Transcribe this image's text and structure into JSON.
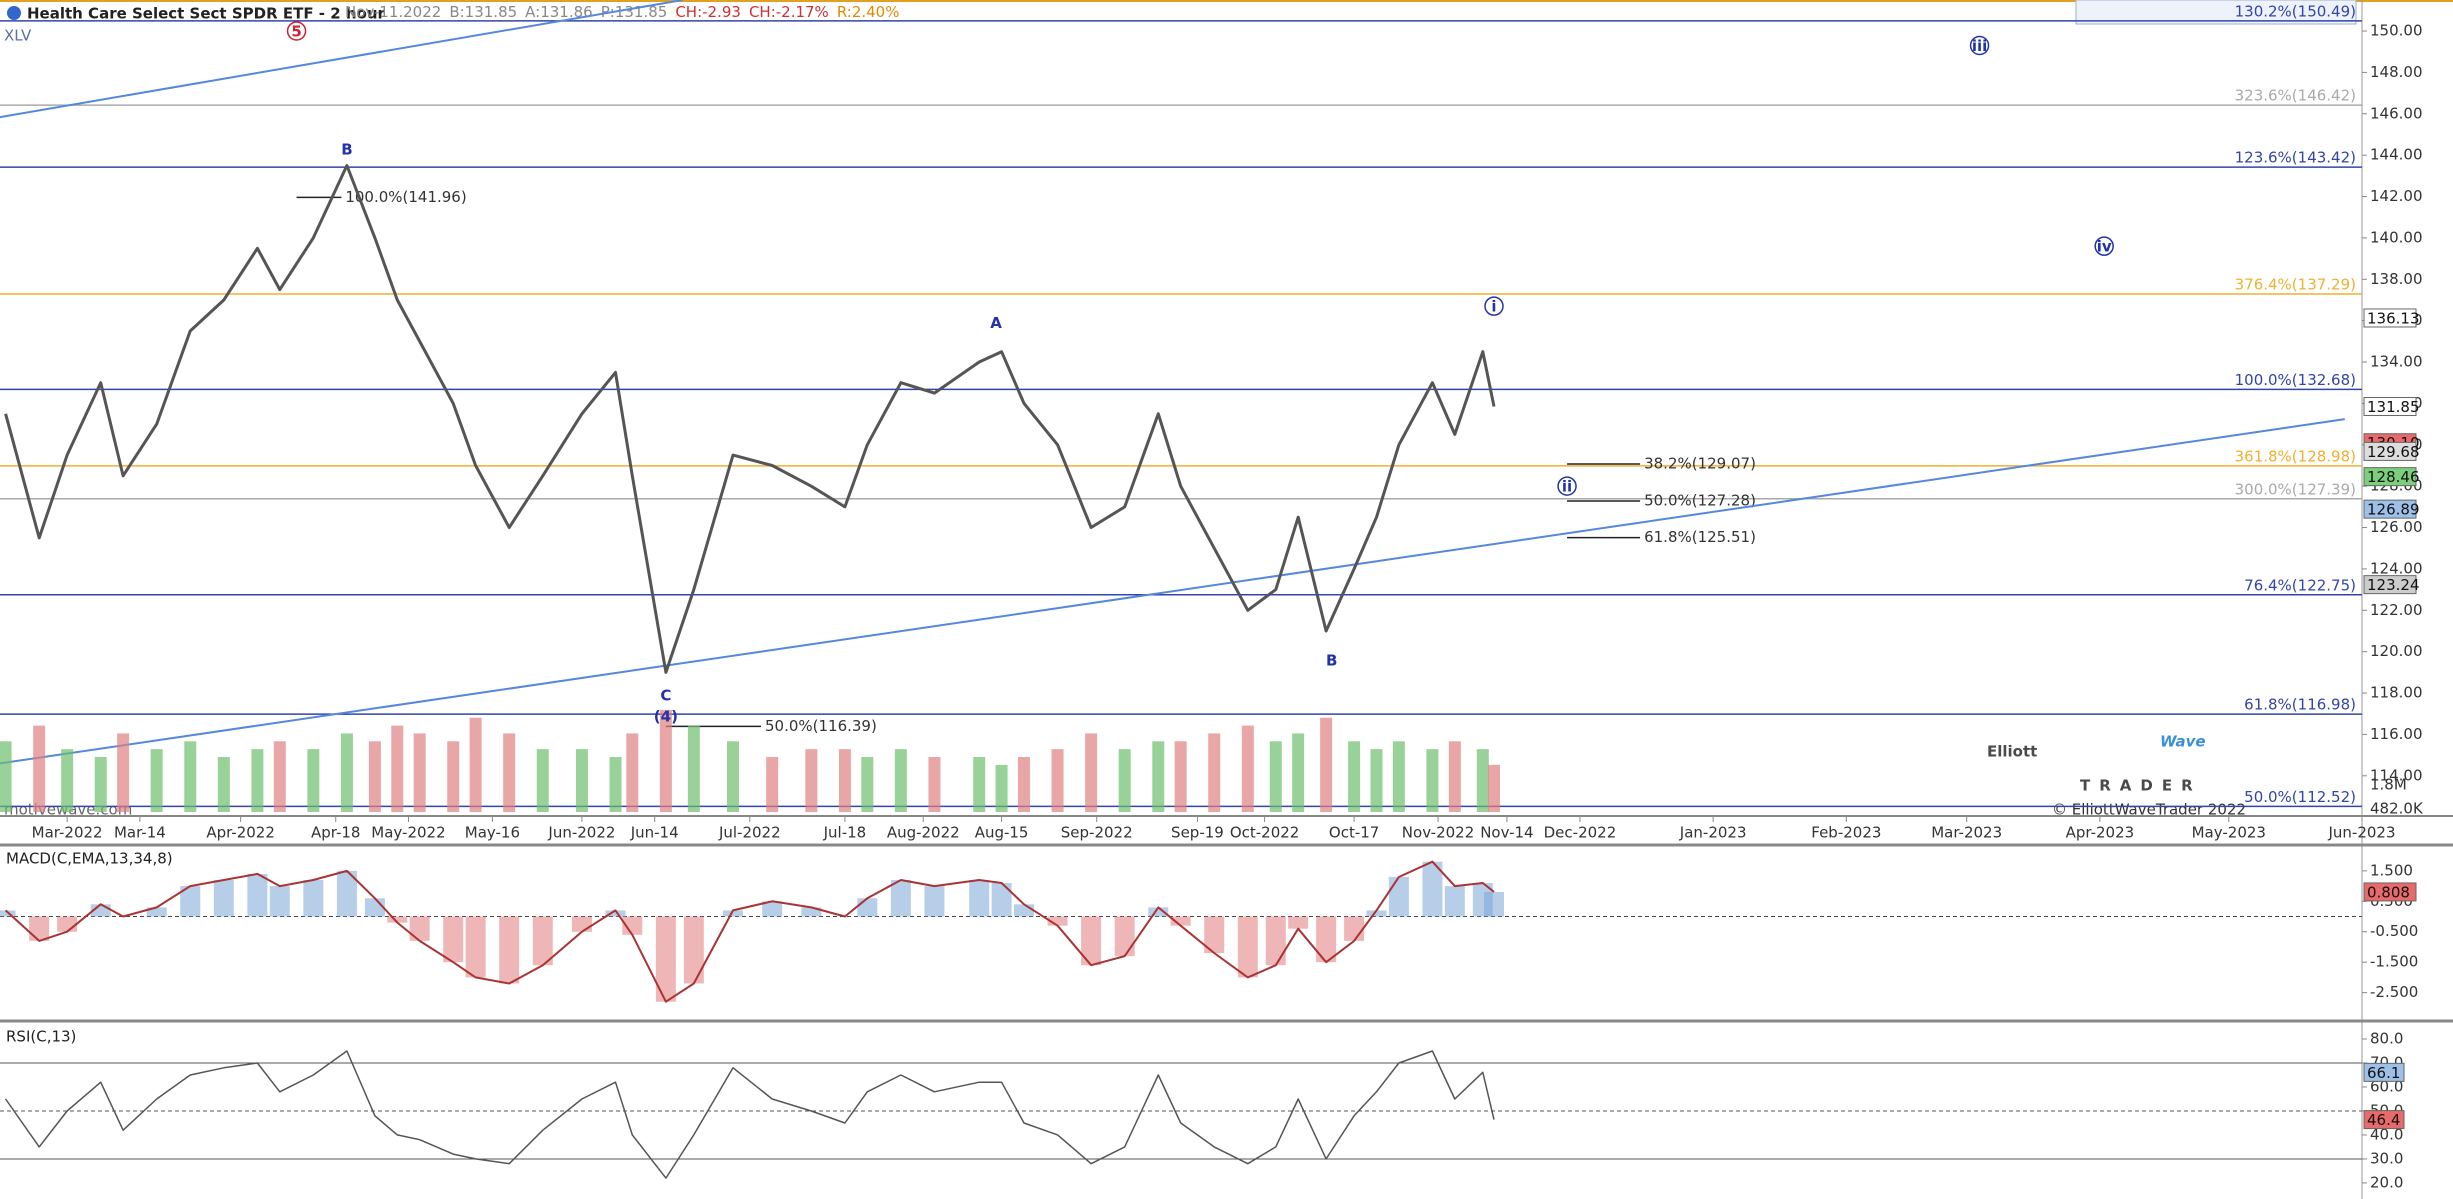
{
  "chart_data": {
    "type": "line",
    "title": "Health Care Select Sect SPDR ETF - 2 hour",
    "quote": [
      {
        "text": "Nov-11.2022",
        "color": "#888888"
      },
      {
        "text": "B:131.85",
        "color": "#888888"
      },
      {
        "text": "A:131.86",
        "color": "#888888"
      },
      {
        "text": "P:131.85",
        "color": "#888888"
      },
      {
        "text": "CH:-2.93",
        "color": "#d03030"
      },
      {
        "text": "CH:-2.17%",
        "color": "#d03030"
      },
      {
        "text": "R:2.40%",
        "color": "#e08a00"
      }
    ],
    "symbol": "XLV",
    "watermark": "motivewave.com",
    "logo": {
      "word1": "Elliott",
      "word2": "Wave",
      "word3": "TRADER",
      "copyright": "© ElliottWaveTrader 2022"
    },
    "x": [
      "2022-02-18",
      "2022-02-24",
      "2022-03-01",
      "2022-03-07",
      "2022-03-11",
      "2022-03-17",
      "2022-03-23",
      "2022-03-29",
      "2022-04-04",
      "2022-04-08",
      "2022-04-14",
      "2022-04-20",
      "2022-04-25",
      "2022-04-29",
      "2022-05-03",
      "2022-05-09",
      "2022-05-13",
      "2022-05-19",
      "2022-05-25",
      "2022-06-01",
      "2022-06-07",
      "2022-06-10",
      "2022-06-16",
      "2022-06-21",
      "2022-06-28",
      "2022-07-05",
      "2022-07-12",
      "2022-07-18",
      "2022-07-22",
      "2022-07-28",
      "2022-08-03",
      "2022-08-11",
      "2022-08-15",
      "2022-08-19",
      "2022-08-25",
      "2022-08-31",
      "2022-09-06",
      "2022-09-12",
      "2022-09-16",
      "2022-09-22",
      "2022-09-28",
      "2022-10-03",
      "2022-10-07",
      "2022-10-12",
      "2022-10-17",
      "2022-10-21",
      "2022-10-25",
      "2022-10-31",
      "2022-11-04",
      "2022-11-09",
      "2022-11-11"
    ],
    "series": [
      {
        "name": "XLV",
        "color": "#555555",
        "values": [
          131.5,
          125.5,
          129.5,
          133,
          128.5,
          131,
          135.5,
          137,
          139.5,
          137.5,
          140,
          143.5,
          140,
          137,
          135,
          132,
          129,
          126,
          128.5,
          131.5,
          133.5,
          128.5,
          119,
          123,
          129.5,
          129,
          128,
          127,
          130,
          133,
          132.5,
          134,
          134.5,
          132,
          130,
          126,
          127,
          131.5,
          128,
          125,
          122,
          123,
          126.5,
          121,
          124,
          126.5,
          130,
          133,
          130.5,
          134.5,
          131.85
        ]
      }
    ],
    "volume": {
      "up_color": "#6cbf6c",
      "down_color": "#e08080",
      "values": [
        9,
        11,
        8,
        7,
        10,
        8,
        9,
        7,
        8,
        9,
        8,
        10,
        9,
        11,
        10,
        9,
        12,
        10,
        8,
        8,
        7,
        10,
        13,
        11,
        9,
        7,
        8,
        8,
        7,
        8,
        7,
        7,
        6,
        7,
        8,
        10,
        8,
        9,
        9,
        10,
        11,
        9,
        10,
        12,
        9,
        8,
        9,
        8,
        9,
        8,
        6
      ],
      "ylim": [
        0,
        14
      ],
      "labels": [
        "1.8M",
        "482.0K"
      ]
    },
    "xlim": [
      "2022-02-17",
      "2023-06-01"
    ],
    "xticks": [
      {
        "value": "2022-03-01",
        "label": "Mar-2022"
      },
      {
        "value": "2022-03-14",
        "label": "Mar-14"
      },
      {
        "value": "2022-04-01",
        "label": "Apr-2022"
      },
      {
        "value": "2022-04-18",
        "label": "Apr-18"
      },
      {
        "value": "2022-05-01",
        "label": "May-2022"
      },
      {
        "value": "2022-05-16",
        "label": "May-16"
      },
      {
        "value": "2022-06-01",
        "label": "Jun-2022"
      },
      {
        "value": "2022-06-14",
        "label": "Jun-14"
      },
      {
        "value": "2022-07-01",
        "label": "Jul-2022"
      },
      {
        "value": "2022-07-18",
        "label": "Jul-18"
      },
      {
        "value": "2022-08-01",
        "label": "Aug-2022"
      },
      {
        "value": "2022-08-15",
        "label": "Aug-15"
      },
      {
        "value": "2022-09-01",
        "label": "Sep-2022"
      },
      {
        "value": "2022-09-19",
        "label": "Sep-19"
      },
      {
        "value": "2022-10-01",
        "label": "Oct-2022"
      },
      {
        "value": "2022-10-17",
        "label": "Oct-17"
      },
      {
        "value": "2022-11-01",
        "label": "Nov-2022"
      },
      {
        "value": "2022-11-14",
        "label": "Nov-14"
      },
      {
        "value": "2022-12-01",
        "label": "Dec-2022"
      },
      {
        "value": "2023-01-01",
        "label": "Jan-2023"
      },
      {
        "value": "2023-02-01",
        "label": "Feb-2023"
      },
      {
        "value": "2023-03-01",
        "label": "Mar-2023"
      },
      {
        "value": "2023-04-01",
        "label": "Apr-2023"
      },
      {
        "value": "2023-05-01",
        "label": "May-2023"
      },
      {
        "value": "2023-06-01",
        "label": "Jun-2023"
      }
    ],
    "ylim": [
      112.25,
      151.5
    ],
    "yticks": [
      {
        "value": 114,
        "label": "114.00"
      },
      {
        "value": 116,
        "label": "116.00"
      },
      {
        "value": 118,
        "label": "118.00"
      },
      {
        "value": 120,
        "label": "120.00"
      },
      {
        "value": 122,
        "label": "122.00"
      },
      {
        "value": 124,
        "label": "124.00"
      },
      {
        "value": 126,
        "label": "126.00"
      },
      {
        "value": 128,
        "label": "128.00"
      },
      {
        "value": 130,
        "label": "130.00"
      },
      {
        "value": 132,
        "label": "132.00"
      },
      {
        "value": 134,
        "label": "134.00"
      },
      {
        "value": 136,
        "label": "136.00"
      },
      {
        "value": 138,
        "label": "138.00"
      },
      {
        "value": 140,
        "label": "140.00"
      },
      {
        "value": 142,
        "label": "142.00"
      },
      {
        "value": 144,
        "label": "144.00"
      },
      {
        "value": 146,
        "label": "146.00"
      },
      {
        "value": 148,
        "label": "148.00"
      },
      {
        "value": 150,
        "label": "150.00"
      }
    ],
    "price_markers": [
      {
        "value": 136.13,
        "label": "136.13",
        "color": "#ffffff"
      },
      {
        "value": 131.85,
        "label": "131.85",
        "color": "#ffffff"
      },
      {
        "value": 130.1,
        "label": "130.10",
        "color": "#e86a6a"
      },
      {
        "value": 129.68,
        "label": "129.68",
        "color": "#dddddd"
      },
      {
        "value": 128.46,
        "label": "128.46",
        "color": "#7ccf7c"
      },
      {
        "value": 126.89,
        "label": "126.89",
        "color": "#9cc0e8"
      },
      {
        "value": 123.24,
        "label": "123.24",
        "color": "#cccccc"
      }
    ],
    "fib_levels": [
      {
        "value": 150.49,
        "label": "130.2%(150.49)",
        "color": "#3344aa"
      },
      {
        "value": 146.42,
        "label": "323.6%(146.42)",
        "color": "#aaaaaa"
      },
      {
        "value": 143.42,
        "label": "123.6%(143.42)",
        "color": "#3344aa"
      },
      {
        "value": 137.29,
        "label": "376.4%(137.29)",
        "color": "#f0b030"
      },
      {
        "value": 132.68,
        "label": "100.0%(132.68)",
        "color": "#3344aa"
      },
      {
        "value": 128.98,
        "label": "361.8%(128.98)",
        "color": "#f0b030"
      },
      {
        "value": 127.39,
        "label": "300.0%(127.39)",
        "color": "#aaaaaa"
      },
      {
        "value": 122.75,
        "label": "76.4%(122.75)",
        "color": "#3344aa"
      },
      {
        "value": 116.98,
        "label": "61.8%(116.98)",
        "color": "#3344aa"
      },
      {
        "value": 112.52,
        "label": "50.0%(112.52)",
        "color": "#3344aa"
      }
    ],
    "fib_segments": [
      {
        "value": 141.96,
        "label": "100.0%(141.96)",
        "from": "2022-04-11",
        "to": "2022-04-19"
      },
      {
        "value": 116.39,
        "label": "50.0%(116.39)",
        "from": "2022-06-16",
        "to": "2022-07-03"
      },
      {
        "value": 129.07,
        "label": "38.2%(129.07)",
        "from": "2022-11-28",
        "to": "2022-12-15"
      },
      {
        "value": 127.28,
        "label": "50.0%(127.28)",
        "from": "2022-11-28",
        "to": "2022-12-15"
      },
      {
        "value": 125.51,
        "label": "61.8%(125.51)",
        "from": "2022-11-28",
        "to": "2022-12-15"
      }
    ],
    "wave_labels": [
      {
        "label": "5",
        "date": "2022-04-11",
        "value": 150.0,
        "circled": true,
        "color": "#cc2233"
      },
      {
        "label": "B",
        "date": "2022-04-20",
        "value": 144.3,
        "circled": false,
        "color": "#2233aa"
      },
      {
        "label": "C",
        "date": "2022-06-16",
        "value": 117.9,
        "circled": false,
        "color": "#2233aa"
      },
      {
        "label": "(4)",
        "date": "2022-06-16",
        "value": 116.9,
        "circled": false,
        "color": "#2233aa"
      },
      {
        "label": "A",
        "date": "2022-08-14",
        "value": 135.9,
        "circled": false,
        "color": "#2233aa"
      },
      {
        "label": "B",
        "date": "2022-10-13",
        "value": 119.6,
        "circled": false,
        "color": "#2233aa"
      },
      {
        "label": "i",
        "date": "2022-11-11",
        "value": 136.7,
        "circled": true,
        "color": "#2233aa"
      },
      {
        "label": "ii",
        "date": "2022-11-28",
        "value": 128.0,
        "circled": true,
        "color": "#2233aa"
      },
      {
        "label": "iii",
        "date": "2023-03-04",
        "value": 149.3,
        "circled": true,
        "color": "#2233aa"
      },
      {
        "label": "iv",
        "date": "2023-04-02",
        "value": 139.6,
        "circled": true,
        "color": "#2233aa"
      }
    ],
    "trendlines": [
      {
        "color": "#5588dd",
        "points": [
          [
            "2022-02-17",
            145.84
          ],
          [
            "2022-06-19",
            151.5
          ]
        ]
      },
      {
        "color": "#5588dd",
        "points": [
          [
            "2022-02-17",
            114.6
          ],
          [
            "2023-05-28",
            131.24
          ]
        ]
      }
    ],
    "macd": {
      "title": "MACD(C,EMA,13,34,8)",
      "color": "#aa3333",
      "values": [
        0.2,
        -0.8,
        -0.5,
        0.4,
        0.0,
        0.3,
        1.0,
        1.2,
        1.4,
        1.0,
        1.2,
        1.5,
        0.6,
        -0.2,
        -0.8,
        -1.5,
        -2.0,
        -2.2,
        -1.6,
        -0.5,
        0.2,
        -0.6,
        -2.8,
        -2.2,
        0.2,
        0.5,
        0.3,
        0.0,
        0.6,
        1.2,
        1.0,
        1.2,
        1.1,
        0.4,
        -0.3,
        -1.6,
        -1.3,
        0.3,
        -0.3,
        -1.2,
        -2.0,
        -1.6,
        -0.4,
        -1.5,
        -0.8,
        0.2,
        1.3,
        1.8,
        1.0,
        1.1,
        0.808
      ],
      "ylim": [
        -3.4,
        2.35
      ],
      "yticks": [
        {
          "value": 1.5,
          "label": "1.500"
        },
        {
          "value": 0.5,
          "label": "0.500"
        },
        {
          "value": -0.5,
          "label": "-0.500"
        },
        {
          "value": -1.5,
          "label": "-1.500"
        },
        {
          "value": -2.5,
          "label": "-2.500"
        }
      ]
    },
    "rsi": {
      "title": "RSI(C,13)",
      "color": "#555555",
      "values": [
        55,
        35,
        50,
        62,
        42,
        55,
        65,
        68,
        70,
        58,
        65,
        75,
        48,
        40,
        38,
        32,
        30,
        28,
        42,
        55,
        62,
        40,
        22,
        40,
        68,
        55,
        50,
        45,
        58,
        65,
        58,
        62,
        62,
        45,
        40,
        28,
        35,
        65,
        45,
        35,
        28,
        35,
        55,
        30,
        48,
        58,
        70,
        75,
        55,
        66.1,
        46.4
      ],
      "markers": [
        {
          "value": 66.1,
          "color": "#9cc0e8"
        },
        {
          "value": 46.4,
          "color": "#e86a6a"
        }
      ],
      "ylim": [
        13.3,
        86.25
      ],
      "yticks": [
        {
          "value": 80,
          "label": "80.0"
        },
        {
          "value": 70,
          "label": "70.0"
        },
        {
          "value": 60,
          "label": "60.0"
        },
        {
          "value": 50,
          "label": "50.0"
        },
        {
          "value": 40,
          "label": "40.0"
        },
        {
          "value": 30,
          "label": "30.0"
        },
        {
          "value": 20,
          "label": "20.0"
        }
      ],
      "levels": [
        70,
        50,
        30
      ]
    }
  }
}
